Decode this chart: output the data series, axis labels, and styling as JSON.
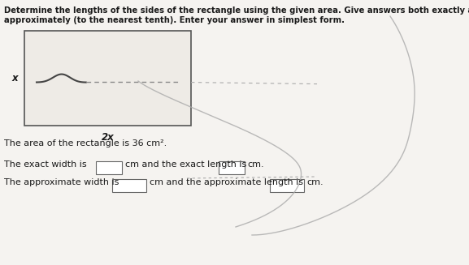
{
  "title_line1": "Determine the lengths of the sides of the rectangle using the given area. Give answers both exactly and",
  "title_line2": "approximately (to the nearest tenth). Enter your answer in simplest form.",
  "label_x": "x",
  "label_2x": "2x",
  "area_text": "The area of the rectangle is 36 cm².",
  "exact_width_label": "The exact width is",
  "exact_mid_text": "cm and the exact length is",
  "exact_end_text": "cm.",
  "approx_width_label": "The approximate width is",
  "approx_mid_text": "cm and the approximate length is",
  "approx_end_text": "cm.",
  "bg_color": "#f5f3f0",
  "text_color": "#1a1a1a",
  "box_color": "#ffffff",
  "rect_edge_color": "#555555",
  "rect_face_color": "#eeebe6",
  "font_size_title": 7.2,
  "font_size_body": 8.0,
  "font_size_label": 8.5
}
